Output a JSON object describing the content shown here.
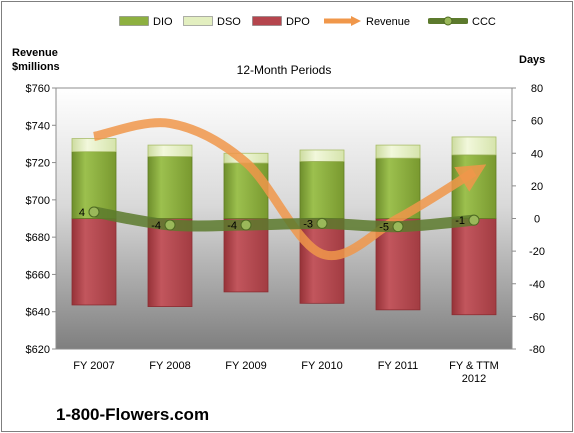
{
  "chart_data": {
    "type": "bar",
    "title": "12-Month Periods",
    "y_left_label_line1": "Revenue",
    "y_left_label_line2": "$millions",
    "y_right_label": "Days",
    "ylim_left": [
      620,
      760
    ],
    "ylim_right": [
      -80,
      80
    ],
    "yticks_left": [
      "$620",
      "$640",
      "$660",
      "$680",
      "$700",
      "$720",
      "$740",
      "$760"
    ],
    "yticks_right": [
      "-80",
      "-60",
      "-40",
      "-20",
      "0",
      "20",
      "40",
      "60",
      "80"
    ],
    "categories": [
      [
        "FY 2007"
      ],
      [
        "FY 2008"
      ],
      [
        "FY 2009"
      ],
      [
        "FY 2010"
      ],
      [
        "FY 2011"
      ],
      [
        "FY & TTM",
        "2012"
      ]
    ],
    "series": [
      {
        "name": "DIO",
        "axis": "right",
        "type": "stacked-bar",
        "color": "#8db040",
        "values": [
          41,
          38,
          34,
          35,
          37,
          39
        ]
      },
      {
        "name": "DSO",
        "axis": "right",
        "type": "stacked-bar",
        "color": "#e3efc0",
        "values": [
          8,
          7,
          6,
          7,
          8,
          11
        ]
      },
      {
        "name": "DPO",
        "axis": "right",
        "type": "bar",
        "color": "#b5454d",
        "values": [
          -53,
          -54,
          -45,
          -52,
          -56,
          -59
        ]
      },
      {
        "name": "Revenue",
        "axis": "left",
        "type": "line",
        "color": "#f0974a",
        "values": [
          734,
          741,
          720,
          671,
          690,
          715
        ]
      },
      {
        "name": "CCC",
        "axis": "right",
        "type": "line",
        "color": "#5c7a2d",
        "values": [
          4,
          -4,
          -4,
          -3,
          -5,
          -1
        ],
        "labels": [
          "4",
          "-4",
          "-4",
          "-3",
          "-5",
          "-1"
        ]
      }
    ],
    "legend_position": "top",
    "grid": false
  },
  "brand": "1-800-Flowers.com"
}
